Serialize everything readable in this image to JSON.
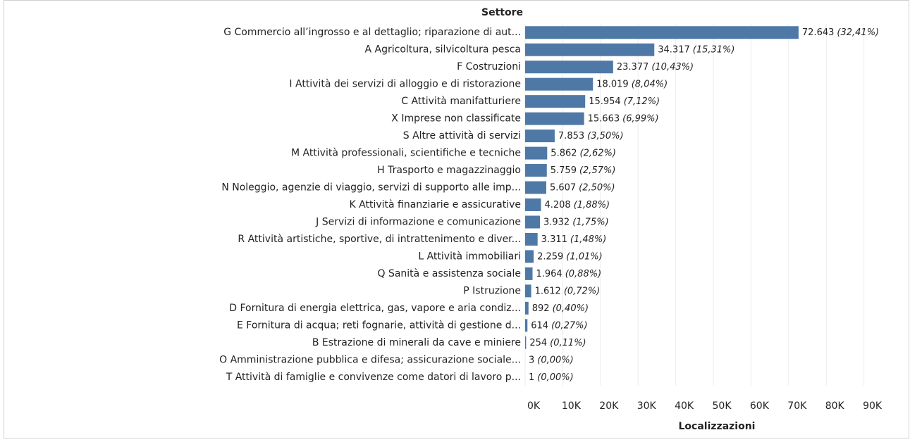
{
  "chart_data": {
    "type": "bar",
    "orientation": "horizontal",
    "category_axis_title": "Settore",
    "x_axis_title": "Localizzazioni",
    "color": "#4e79a7",
    "grid": true,
    "categories": [
      "G Commercio all’ingrosso e al dettaglio; riparazione di aut...",
      "A Agricoltura, silvicoltura pesca",
      "F Costruzioni",
      "I Attività dei servizi di alloggio e di ristorazione",
      "C Attività manifatturiere",
      "X Imprese non classificate",
      "S Altre attività di servizi",
      "M Attività professionali, scientifiche e tecniche",
      "H Trasporto e magazzinaggio",
      "N Noleggio, agenzie di viaggio, servizi di supporto alle imp...",
      "K Attività finanziarie e assicurative",
      "J Servizi di informazione e comunicazione",
      "R Attività artistiche, sportive, di intrattenimento e diver...",
      "L Attività immobiliari",
      "Q Sanità e assistenza sociale",
      "P Istruzione",
      "D Fornitura di energia elettrica, gas, vapore e aria condiz...",
      "E Fornitura di acqua; reti fognarie, attività di gestione d...",
      "B Estrazione di minerali da cave e miniere",
      "O Amministrazione pubblica e difesa; assicurazione sociale...",
      "T Attività di famiglie e convivenze come datori di lavoro p..."
    ],
    "values": [
      72643,
      34317,
      23377,
      18019,
      15954,
      15663,
      7853,
      5862,
      5759,
      5607,
      4208,
      3932,
      3311,
      2259,
      1964,
      1612,
      892,
      614,
      254,
      3,
      1
    ],
    "value_labels": [
      "72.643",
      "34.317",
      "23.377",
      "18.019",
      "15.954",
      "15.663",
      "7.853",
      "5.862",
      "5.759",
      "5.607",
      "4.208",
      "3.932",
      "3.311",
      "2.259",
      "1.964",
      "1.612",
      "892",
      "614",
      "254",
      "3",
      "1"
    ],
    "shares": [
      32.41,
      15.31,
      10.43,
      8.04,
      7.12,
      6.99,
      3.5,
      2.62,
      2.57,
      2.5,
      1.88,
      1.75,
      1.48,
      1.01,
      0.88,
      0.72,
      0.4,
      0.27,
      0.11,
      0.0,
      0.0
    ],
    "share_labels": [
      "(32,41%)",
      "(15,31%)",
      "(10,43%)",
      "(8,04%)",
      "(7,12%)",
      "(6,99%)",
      "(3,50%)",
      "(2,62%)",
      "(2,57%)",
      "(2,50%)",
      "(1,88%)",
      "(1,75%)",
      "(1,48%)",
      "(1,01%)",
      "(0,88%)",
      "(0,72%)",
      "(0,40%)",
      "(0,27%)",
      "(0,11%)",
      "(0,00%)",
      "(0,00%)"
    ],
    "xlim": [
      0,
      100000
    ],
    "xticks": [
      {
        "value": 0,
        "label": "0K"
      },
      {
        "value": 10000,
        "label": "10K"
      },
      {
        "value": 20000,
        "label": "20K"
      },
      {
        "value": 30000,
        "label": "30K"
      },
      {
        "value": 40000,
        "label": "40K"
      },
      {
        "value": 50000,
        "label": "50K"
      },
      {
        "value": 60000,
        "label": "60K"
      },
      {
        "value": 70000,
        "label": "70K"
      },
      {
        "value": 80000,
        "label": "80K"
      },
      {
        "value": 90000,
        "label": "90K"
      }
    ]
  }
}
